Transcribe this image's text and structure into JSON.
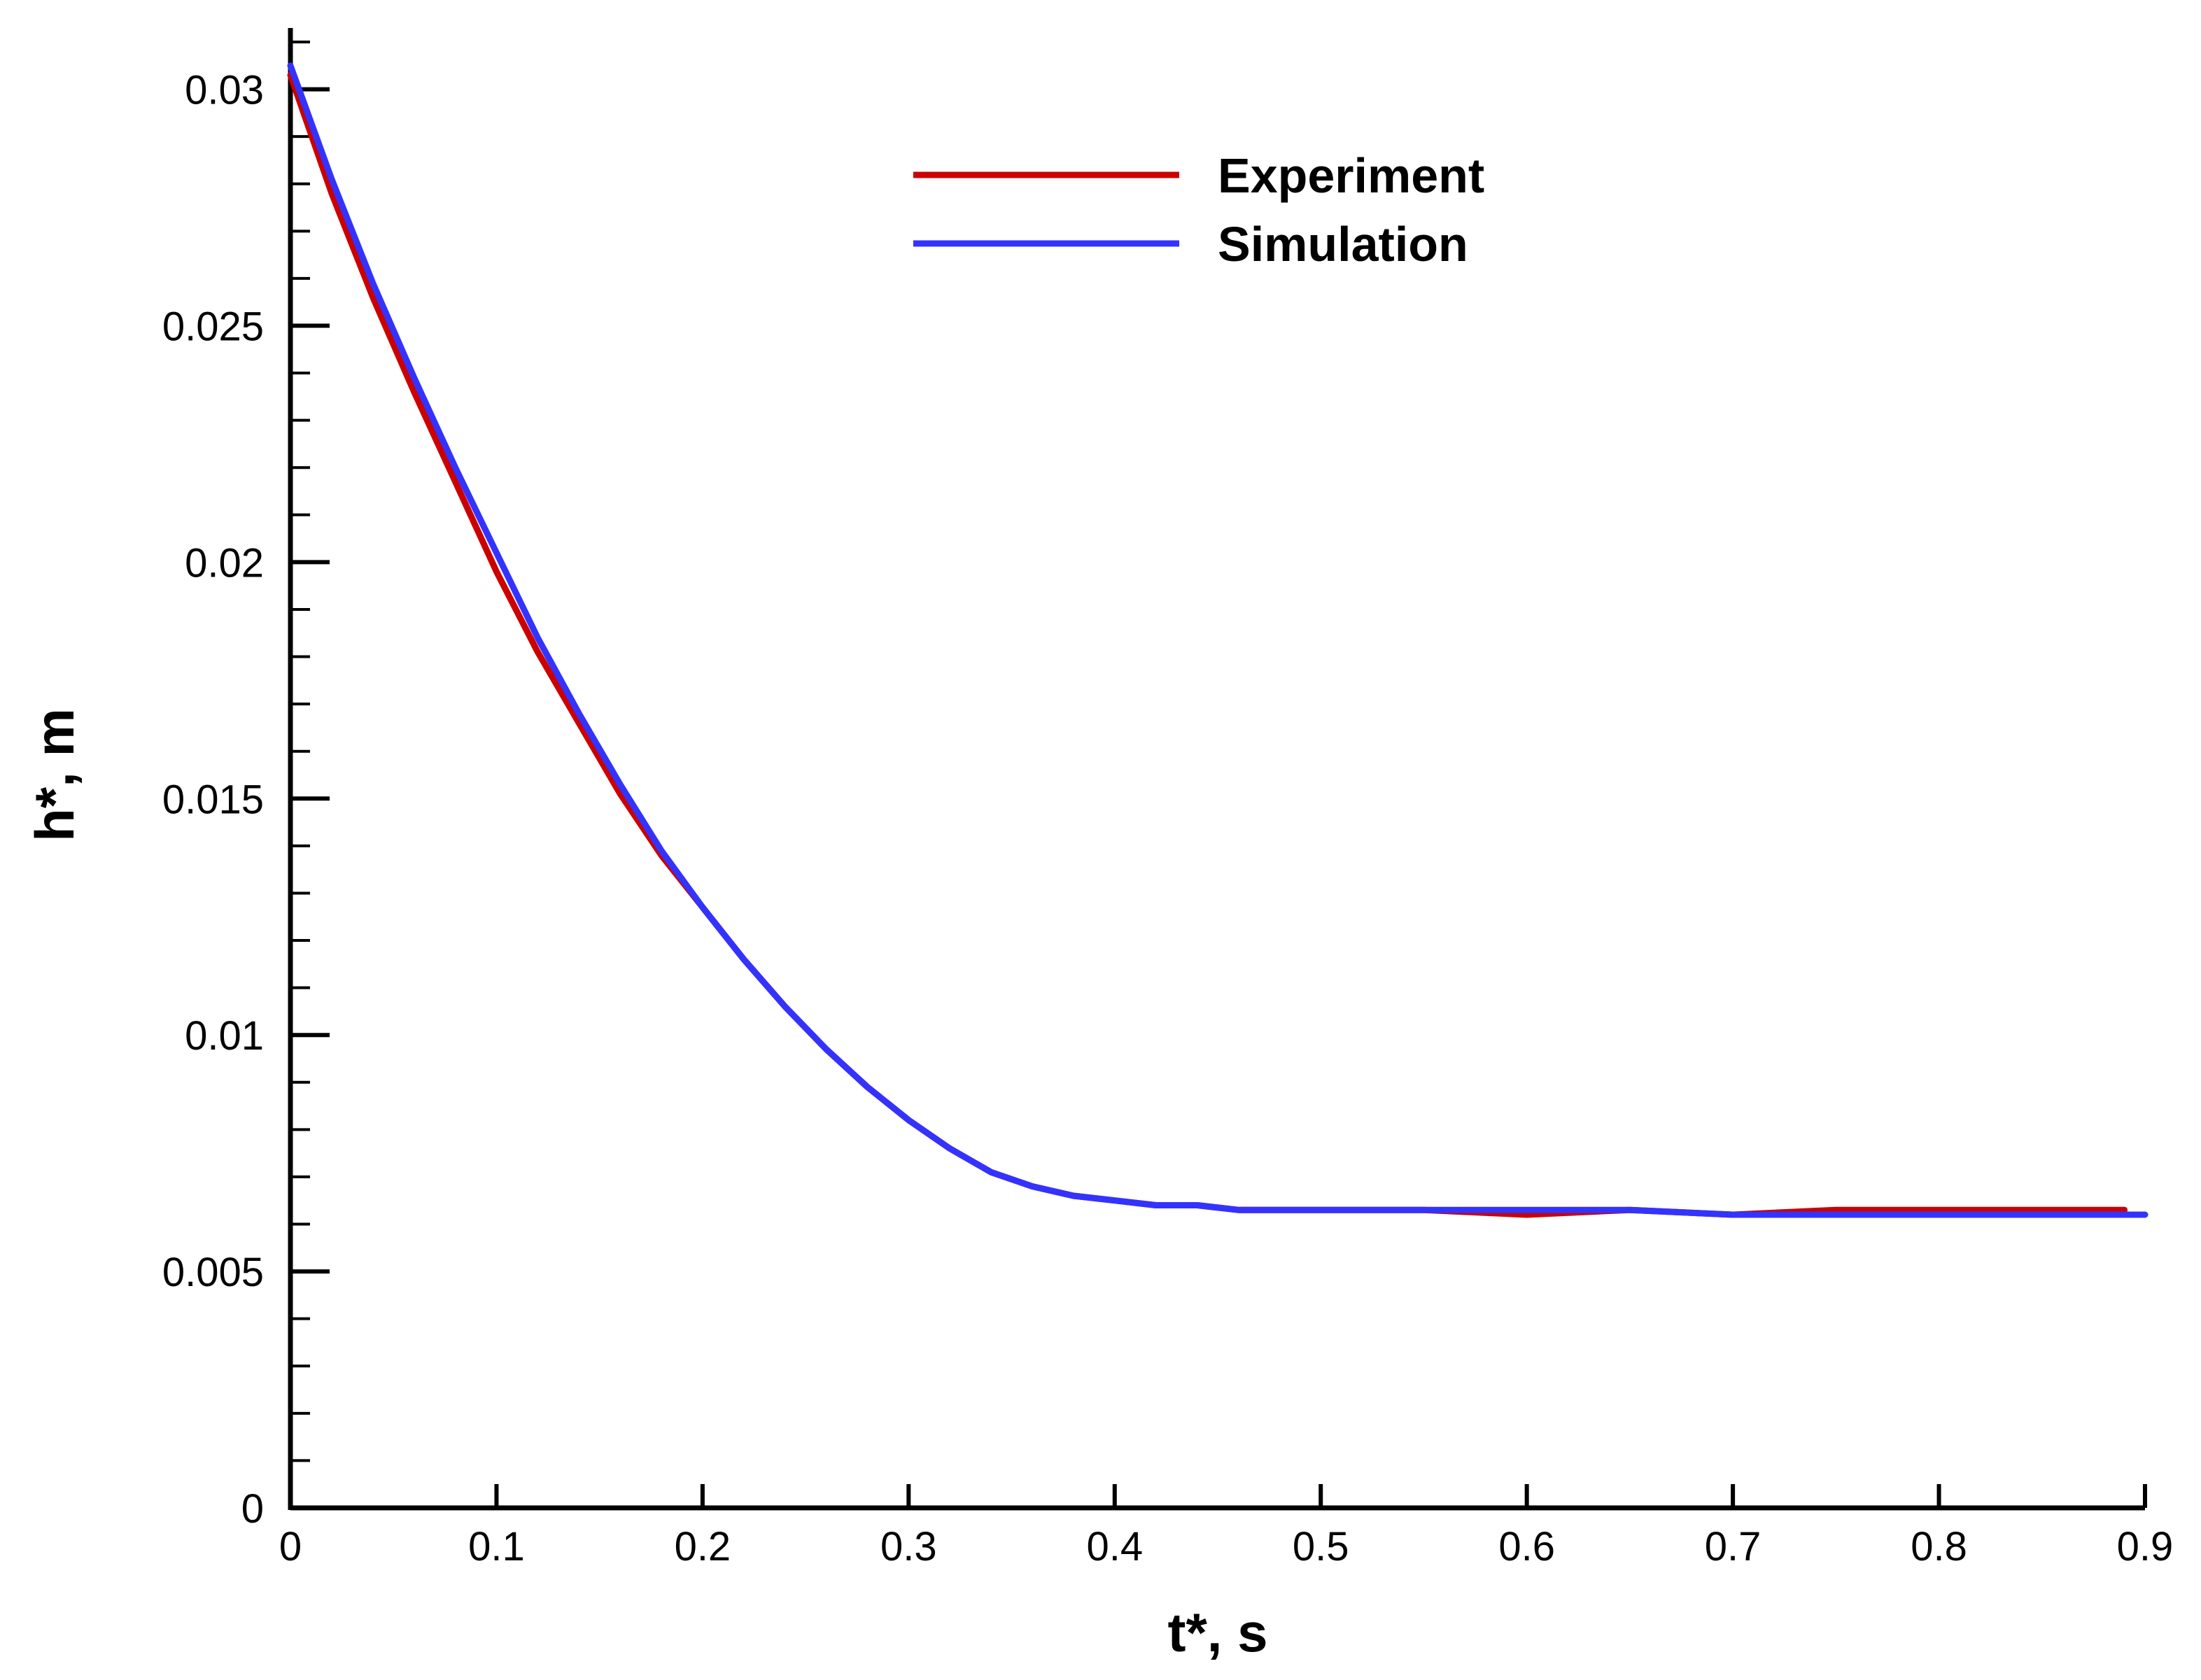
{
  "chart_data": {
    "type": "line",
    "title": "",
    "xlabel": "t*, s",
    "ylabel": "h*, m",
    "xlim": [
      0,
      0.9
    ],
    "ylim": [
      0,
      0.031
    ],
    "xticks": [
      0,
      0.1,
      0.2,
      0.3,
      0.4,
      0.5,
      0.6,
      0.7,
      0.8,
      0.9
    ],
    "xtick_labels": [
      "0",
      "0.1",
      "0.2",
      "0.3",
      "0.4",
      "0.5",
      "0.6",
      "0.7",
      "0.8",
      "0.9"
    ],
    "yticks": [
      0,
      0.005,
      0.01,
      0.015,
      0.02,
      0.025,
      0.03
    ],
    "ytick_labels": [
      "0",
      "0.005",
      "0.01",
      "0.015",
      "0.02",
      "0.025",
      "0.03"
    ],
    "x_minor_per_major": 0,
    "y_minor_per_major": 5,
    "grid": false,
    "legend_position": "top-center",
    "series": [
      {
        "name": "Experiment",
        "color": "#cc0000",
        "x": [
          0.0,
          0.02,
          0.04,
          0.06,
          0.08,
          0.1,
          0.12,
          0.14,
          0.16,
          0.18,
          0.2,
          0.22,
          0.24,
          0.26,
          0.28,
          0.3,
          0.32,
          0.34,
          0.36,
          0.38,
          0.4,
          0.42,
          0.44,
          0.46,
          0.48,
          0.5,
          0.55,
          0.6,
          0.65,
          0.7,
          0.75,
          0.8,
          0.85,
          0.89
        ],
        "y": [
          0.0303,
          0.0278,
          0.0256,
          0.0236,
          0.0217,
          0.0198,
          0.0181,
          0.0166,
          0.0151,
          0.0138,
          0.0127,
          0.0116,
          0.0106,
          0.0097,
          0.0089,
          0.0082,
          0.0076,
          0.0071,
          0.0068,
          0.0066,
          0.0065,
          0.0064,
          0.0064,
          0.0063,
          0.0063,
          0.0063,
          0.0063,
          0.0062,
          0.0063,
          0.0062,
          0.0063,
          0.0063,
          0.0063,
          0.0063
        ]
      },
      {
        "name": "Simulation",
        "color": "#3333ff",
        "x": [
          0.0,
          0.02,
          0.04,
          0.06,
          0.08,
          0.1,
          0.12,
          0.14,
          0.16,
          0.18,
          0.2,
          0.22,
          0.24,
          0.26,
          0.28,
          0.3,
          0.32,
          0.34,
          0.36,
          0.38,
          0.4,
          0.42,
          0.44,
          0.46,
          0.48,
          0.5,
          0.55,
          0.6,
          0.65,
          0.7,
          0.75,
          0.8,
          0.85,
          0.9
        ],
        "y": [
          0.0305,
          0.0281,
          0.0259,
          0.0239,
          0.022,
          0.0202,
          0.0184,
          0.0168,
          0.0153,
          0.0139,
          0.0127,
          0.0116,
          0.0106,
          0.0097,
          0.0089,
          0.0082,
          0.0076,
          0.0071,
          0.0068,
          0.0066,
          0.0065,
          0.0064,
          0.0064,
          0.0063,
          0.0063,
          0.0063,
          0.0063,
          0.0063,
          0.0063,
          0.0062,
          0.0062,
          0.0062,
          0.0062,
          0.0062
        ]
      }
    ]
  }
}
